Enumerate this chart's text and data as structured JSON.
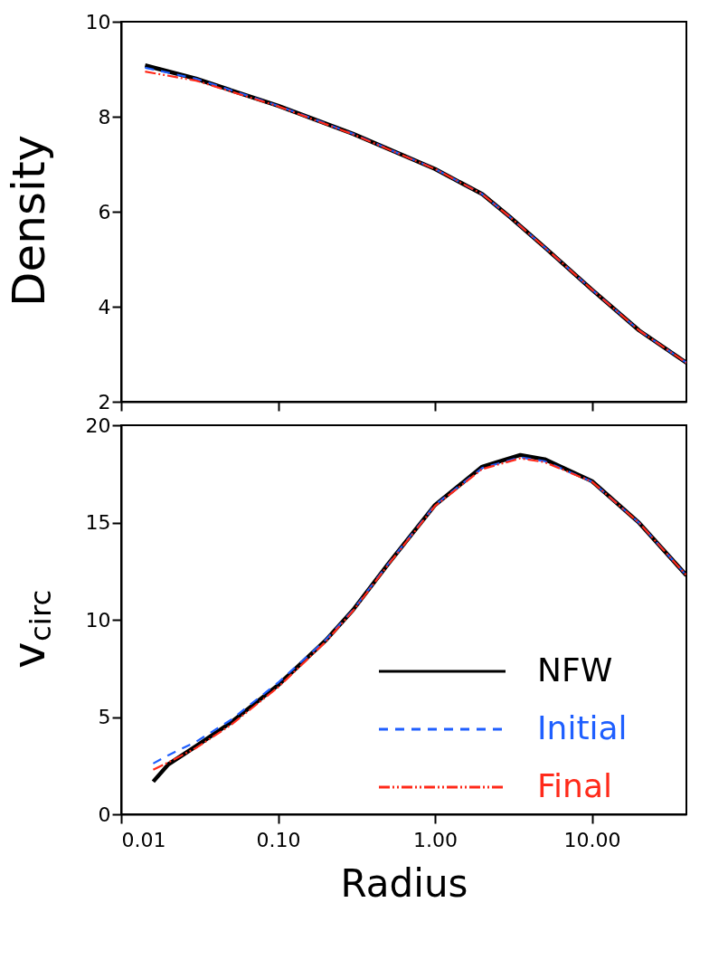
{
  "chart_data": [
    {
      "type": "line",
      "ylabel": "Density",
      "xlim": [
        0.01,
        40
      ],
      "ylim": [
        2,
        10
      ],
      "log": "x",
      "tick_labels": "y",
      "grid": false,
      "xticks": [
        {
          "value": 0.01,
          "label": null
        },
        {
          "value": 0.1,
          "label": null
        },
        {
          "value": 1,
          "label": null
        },
        {
          "value": 10,
          "label": null
        }
      ],
      "yticks": [
        2,
        4,
        6,
        8,
        10
      ],
      "series": [
        {
          "color": "#000000",
          "line_style": "solid",
          "x": [
            0.0142,
            0.03,
            0.1,
            0.3,
            1,
            2,
            3,
            5,
            10,
            20,
            40
          ],
          "values": [
            9.08,
            8.8,
            8.23,
            7.64,
            6.9,
            6.37,
            5.89,
            5.25,
            4.36,
            3.5,
            2.82
          ]
        },
        {
          "color": "#1f5fff",
          "line_style": "dashed",
          "x": [
            0.0142,
            0.03,
            0.1,
            0.3,
            1,
            2,
            3,
            5,
            10,
            20,
            40
          ],
          "values": [
            9.03,
            8.8,
            8.23,
            7.64,
            6.9,
            6.37,
            5.89,
            5.25,
            4.36,
            3.5,
            2.82
          ]
        },
        {
          "color": "#ff2a1a",
          "line_style": "dotted",
          "x": [
            0.0142,
            0.03,
            0.1,
            0.3,
            1,
            2,
            3,
            5,
            10,
            20,
            40
          ],
          "values": [
            8.95,
            8.76,
            8.22,
            7.63,
            6.9,
            6.37,
            5.89,
            5.25,
            4.36,
            3.5,
            2.82
          ]
        }
      ]
    },
    {
      "type": "line",
      "ylabel": "v$_{circ}$",
      "xlabel": "Radius",
      "xlim": [
        0.01,
        40
      ],
      "ylim": [
        0,
        20
      ],
      "log": "x",
      "grid": false,
      "legend": "bottom right",
      "xticks": [
        {
          "value": 0.01,
          "label": "0.01"
        },
        {
          "value": 0.1,
          "label": "0.10"
        },
        {
          "value": 1,
          "label": "1.00"
        },
        {
          "value": 10,
          "label": "10.00"
        }
      ],
      "yticks": [
        0,
        5,
        10,
        15,
        20
      ],
      "series": [
        {
          "name": "NFW",
          "color": "#000000",
          "line_style": "solid",
          "x": [
            0.016,
            0.02,
            0.03,
            0.05,
            0.1,
            0.2,
            0.3,
            0.5,
            1,
            2,
            3.5,
            5,
            10,
            20,
            40
          ],
          "values": [
            1.68,
            2.57,
            3.5,
            4.72,
            6.64,
            8.92,
            10.5,
            12.84,
            15.9,
            17.87,
            18.47,
            18.25,
            17.13,
            14.98,
            12.28
          ]
        },
        {
          "name": "Initial",
          "color": "#1f5fff",
          "line_style": "dashed",
          "x": [
            0.016,
            0.02,
            0.03,
            0.05,
            0.1,
            0.2,
            0.3,
            0.5,
            1,
            2,
            3.5,
            5,
            10,
            20,
            40
          ],
          "values": [
            2.61,
            3.04,
            3.73,
            4.85,
            6.77,
            8.95,
            10.5,
            12.84,
            15.9,
            17.8,
            18.35,
            18.15,
            17.1,
            14.98,
            12.28
          ]
        },
        {
          "name": "Final",
          "color": "#ff2a1a",
          "line_style": "dotted",
          "x": [
            0.016,
            0.02,
            0.03,
            0.05,
            0.1,
            0.2,
            0.3,
            0.5,
            1,
            2,
            3.5,
            5,
            10,
            20,
            40
          ],
          "values": [
            2.29,
            2.67,
            3.41,
            4.59,
            6.53,
            8.85,
            10.45,
            12.8,
            15.85,
            17.75,
            18.3,
            18.1,
            17.1,
            14.98,
            12.28
          ]
        }
      ]
    }
  ]
}
